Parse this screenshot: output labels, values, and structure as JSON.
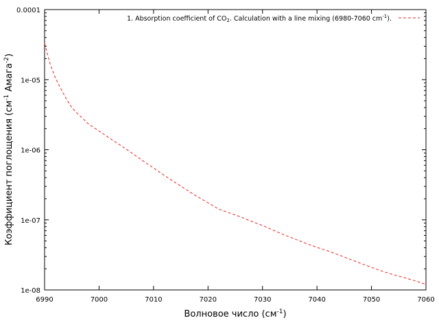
{
  "chart_data": {
    "type": "line",
    "title": "",
    "xlabel": "Волновое число (см",
    "xlabel_sup": "-1",
    "xlabel_tail": ")",
    "ylabel_parts": [
      "Коэффициент поглощения (см",
      "-1",
      " Амага",
      "-2",
      ")"
    ],
    "x_scale": "linear",
    "y_scale": "log",
    "xlim": [
      6990,
      7060
    ],
    "ylim": [
      1e-08,
      0.0001
    ],
    "x_ticks": [
      6990,
      7000,
      7010,
      7020,
      7030,
      7040,
      7050,
      7060
    ],
    "x_tick_labels": [
      "6990",
      "7000",
      "7010",
      "7020",
      "7030",
      "7040",
      "7050",
      "7060"
    ],
    "y_ticks": [
      1e-08,
      1e-07,
      1e-06,
      1e-05,
      0.0001
    ],
    "y_tick_labels": [
      "1e-08",
      "1e-07",
      "1e-06",
      "1e-05",
      "0.0001"
    ],
    "grid": false,
    "legend_position": "top-right",
    "series": [
      {
        "name_parts": [
          "1. Absorption coefficient of CO",
          "2",
          ". Calculation with a line mixing (6980-7060 cm",
          "-1",
          ")."
        ],
        "color": "#e8231e",
        "line_style": "dashed",
        "x": [
          6990,
          6991,
          6992,
          6993,
          6994,
          6995,
          6996,
          6997,
          6998,
          7000,
          7002,
          7004,
          7006,
          7008,
          7010,
          7012,
          7014,
          7016,
          7018,
          7020,
          7022,
          7024,
          7026,
          7028,
          7030,
          7032,
          7034,
          7036,
          7038,
          7040,
          7042,
          7044,
          7046,
          7048,
          7050,
          7052,
          7054,
          7056,
          7058,
          7060
        ],
        "y": [
          3.3e-05,
          1.7e-05,
          1.05e-05,
          7.4e-06,
          5.3e-06,
          4e-06,
          3.3e-06,
          2.8e-06,
          2.35e-06,
          1.85e-06,
          1.45e-06,
          1.15e-06,
          9e-07,
          7e-07,
          5.5e-07,
          4.3e-07,
          3.4e-07,
          2.7e-07,
          2.15e-07,
          1.75e-07,
          1.42e-07,
          1.25e-07,
          1.1e-07,
          9.5e-08,
          8.3e-08,
          7.1e-08,
          6.1e-08,
          5.3e-08,
          4.6e-08,
          4.05e-08,
          3.6e-08,
          3.15e-08,
          2.75e-08,
          2.4e-08,
          2.1e-08,
          1.85e-08,
          1.65e-08,
          1.5e-08,
          1.35e-08,
          1.2e-08
        ]
      }
    ]
  }
}
